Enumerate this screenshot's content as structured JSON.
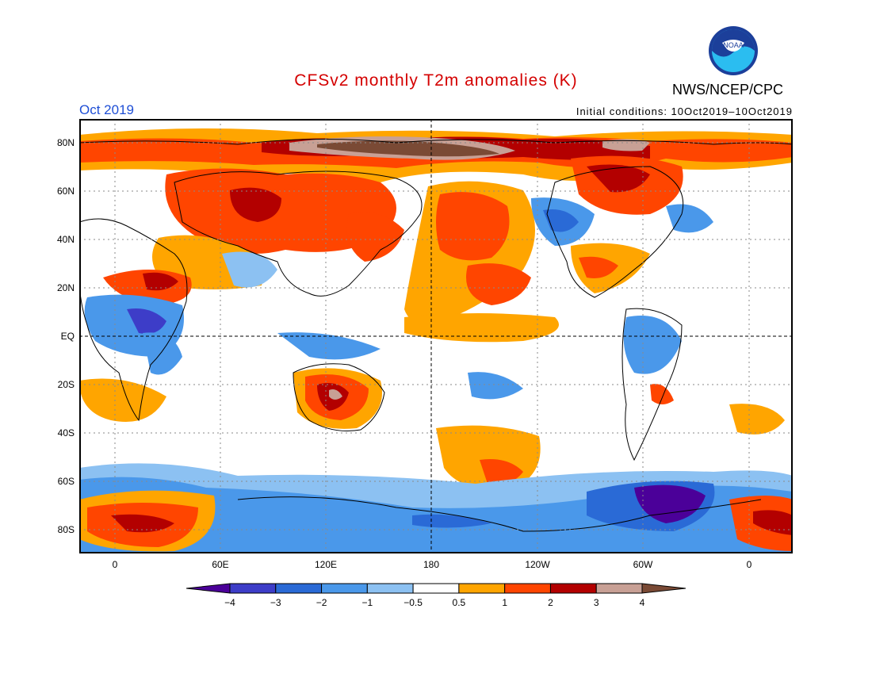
{
  "title": "CFSv2 monthly T2m anomalies (K)",
  "organization": "NWS/NCEP/CPC",
  "logo": {
    "text": "NOAA",
    "icon": "noaa-logo"
  },
  "month": "Oct 2019",
  "initial_conditions": "Initial conditions: 10Oct2019–10Oct2019",
  "axes": {
    "lat_labels": [
      "80N",
      "60N",
      "40N",
      "20N",
      "EQ",
      "20S",
      "40S",
      "60S",
      "80S"
    ],
    "lon_labels": [
      "0",
      "60E",
      "120E",
      "180",
      "120W",
      "60W",
      "0"
    ]
  },
  "colorbar": {
    "levels": [
      "−4",
      "−3",
      "−2",
      "−1",
      "−0.5",
      "0.5",
      "1",
      "2",
      "3",
      "4"
    ],
    "colors": [
      "#4b0099",
      "#3d3dc8",
      "#2a6ad6",
      "#4a98ea",
      "#8cc1f2",
      "#ffffff",
      "#ffa500",
      "#ff4500",
      "#b30000",
      "#c8a095",
      "#7a4a35"
    ]
  }
}
